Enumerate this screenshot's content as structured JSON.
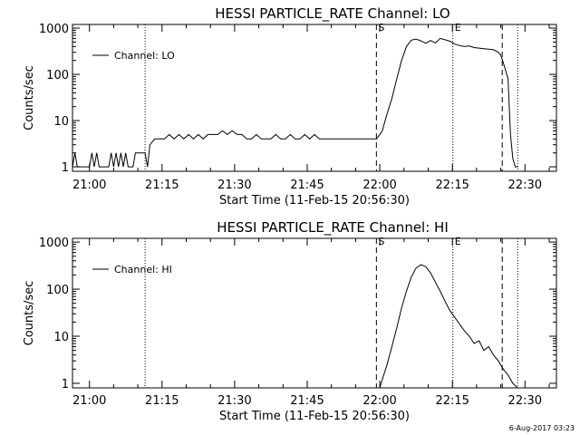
{
  "footer": {
    "stamp": "6-Aug-2017 03:23"
  },
  "chart_data": [
    {
      "type": "line",
      "title": "HESSI PARTICLE_RATE Channel: LO",
      "xlabel": "Start Time (11-Feb-15 20:56:30)",
      "ylabel": "Counts/sec",
      "x_unit": "minutes after 20:56:30",
      "x_ticks": [
        "21:00",
        "21:15",
        "21:30",
        "21:45",
        "22:00",
        "22:15",
        "22:30"
      ],
      "x_tick_values": [
        3.5,
        18.5,
        33.5,
        48.5,
        63.5,
        78.5,
        93.5
      ],
      "xlim": [
        0,
        100
      ],
      "y_scale": "log",
      "y_ticks": [
        "1",
        "10",
        "100",
        "1000"
      ],
      "ylim": [
        0.8,
        1200
      ],
      "legend": {
        "entries": [
          "Channel: LO"
        ],
        "placement": "top-left"
      },
      "markers": [
        {
          "x": 15.0,
          "style": "dotted",
          "label": ""
        },
        {
          "x": 62.8,
          "style": "dashed",
          "label": "S"
        },
        {
          "x": 78.6,
          "style": "dotted",
          "label": "E"
        },
        {
          "x": 88.8,
          "style": "dashed",
          "label": ""
        },
        {
          "x": 92.0,
          "style": "dotted",
          "label": ""
        }
      ],
      "series": [
        {
          "x": [
            0,
            0.5,
            1,
            1.5,
            2,
            2.5,
            3,
            3.5,
            4,
            4.5,
            5,
            5.5,
            6,
            6.5,
            7,
            7.5,
            8,
            8.5,
            9,
            9.5,
            10,
            10.5,
            11,
            11.5,
            12,
            12.5,
            13,
            13.5,
            14,
            14.5,
            15,
            15.5,
            16,
            17,
            18,
            19,
            20,
            21,
            22,
            23,
            24,
            25,
            26,
            27,
            28,
            29,
            30,
            31,
            32,
            33,
            34,
            35,
            36,
            37,
            38,
            39,
            40,
            41,
            42,
            43,
            44,
            45,
            46,
            47,
            48,
            49,
            50,
            51,
            52,
            53,
            54,
            55,
            56,
            57,
            58,
            59,
            60,
            61,
            62,
            62.8,
            63.5,
            64,
            65,
            66,
            67,
            68,
            69,
            70,
            71,
            72,
            73,
            74,
            75,
            76,
            77,
            78,
            79,
            80,
            81,
            82,
            83,
            84,
            85,
            86,
            87,
            88,
            88.5,
            89,
            90,
            90.5,
            91,
            91.5,
            92
          ],
          "y": [
            1,
            2,
            1,
            1,
            1,
            1,
            1,
            1,
            2,
            1,
            2,
            1,
            1,
            1,
            1,
            1,
            2,
            1,
            2,
            1,
            2,
            1,
            2,
            1,
            1,
            1,
            2,
            2,
            2,
            2,
            2,
            1,
            3,
            4,
            4,
            4,
            5,
            4,
            5,
            4,
            5,
            4,
            5,
            4,
            5,
            5,
            5,
            6,
            5,
            6,
            5,
            5,
            4,
            4,
            5,
            4,
            4,
            4,
            5,
            4,
            4,
            5,
            4,
            4,
            5,
            4,
            5,
            4,
            4,
            4,
            4,
            4,
            4,
            4,
            4,
            4,
            4,
            4,
            4,
            4,
            5,
            6,
            14,
            30,
            80,
            200,
            400,
            550,
            580,
            530,
            470,
            540,
            480,
            600,
            560,
            520,
            450,
            420,
            400,
            410,
            380,
            370,
            360,
            350,
            340,
            300,
            260,
            180,
            80,
            5,
            1.5,
            1,
            1
          ]
        }
      ]
    },
    {
      "type": "line",
      "title": "HESSI PARTICLE_RATE Channel: HI",
      "xlabel": "Start Time (11-Feb-15 20:56:30)",
      "ylabel": "Counts/sec",
      "x_unit": "minutes after 20:56:30",
      "x_ticks": [
        "21:00",
        "21:15",
        "21:30",
        "21:45",
        "22:00",
        "22:15",
        "22:30"
      ],
      "x_tick_values": [
        3.5,
        18.5,
        33.5,
        48.5,
        63.5,
        78.5,
        93.5
      ],
      "xlim": [
        0,
        100
      ],
      "y_scale": "log",
      "y_ticks": [
        "1",
        "10",
        "100",
        "1000"
      ],
      "ylim": [
        0.8,
        1200
      ],
      "legend": {
        "entries": [
          "Channel: HI"
        ],
        "placement": "top-left"
      },
      "markers": [
        {
          "x": 15.0,
          "style": "dotted",
          "label": ""
        },
        {
          "x": 62.8,
          "style": "dashed",
          "label": "S"
        },
        {
          "x": 78.6,
          "style": "dotted",
          "label": "E"
        },
        {
          "x": 88.8,
          "style": "dashed",
          "label": ""
        },
        {
          "x": 92.0,
          "style": "dotted",
          "label": ""
        }
      ],
      "series": [
        {
          "x": [
            63.5,
            64,
            65,
            66,
            67,
            68,
            69,
            70,
            71,
            72,
            73,
            74,
            75,
            76,
            77,
            78,
            79,
            80,
            81,
            82,
            83,
            84,
            85,
            86,
            87,
            88,
            89,
            90,
            91,
            92
          ],
          "y": [
            0.8,
            1.2,
            2.5,
            6,
            15,
            40,
            90,
            180,
            280,
            330,
            300,
            220,
            140,
            90,
            55,
            35,
            25,
            18,
            13,
            10,
            7,
            8,
            5,
            6,
            4,
            3,
            2,
            1.5,
            1,
            0.8
          ]
        }
      ]
    }
  ]
}
